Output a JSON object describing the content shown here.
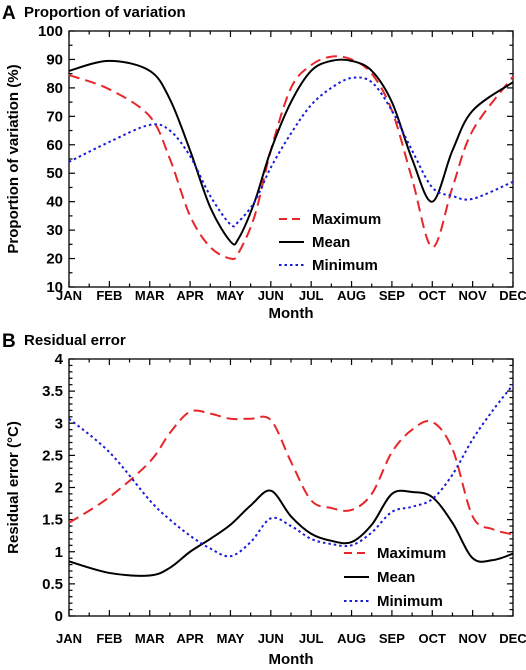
{
  "chart_data": [
    {
      "type": "line",
      "panel": "A",
      "title": "Proportion of variation",
      "xlabel": "Month",
      "ylabel": "Proportion of variation (%)",
      "categories": [
        "JAN",
        "FEB",
        "MAR",
        "APR",
        "MAY",
        "JUN",
        "JUL",
        "AUG",
        "SEP",
        "OCT",
        "NOV",
        "DEC"
      ],
      "ylim": [
        10,
        100
      ],
      "yticks": [
        "10",
        "20",
        "30",
        "40",
        "50",
        "60",
        "70",
        "80",
        "90",
        "100"
      ],
      "legend_position": "lower-center",
      "grid": false,
      "series": [
        {
          "name": "Maximum",
          "color": "#e8262a",
          "dash": "dashed",
          "points": [
            [
              0,
              84.5
            ],
            [
              1,
              79.5
            ],
            [
              2,
              70
            ],
            [
              2.5,
              55
            ],
            [
              3,
              35
            ],
            [
              3.5,
              24
            ],
            [
              4,
              20
            ],
            [
              4.2,
              22
            ],
            [
              4.6,
              35
            ],
            [
              5,
              58
            ],
            [
              5.5,
              80
            ],
            [
              6,
              88
            ],
            [
              6.5,
              91
            ],
            [
              7,
              90
            ],
            [
              7.5,
              85
            ],
            [
              8,
              72
            ],
            [
              8.5,
              48
            ],
            [
              9,
              24
            ],
            [
              9.5,
              45
            ],
            [
              10,
              65
            ],
            [
              11,
              84
            ]
          ]
        },
        {
          "name": "Mean",
          "color": "#000000",
          "dash": "solid",
          "points": [
            [
              0,
              86
            ],
            [
              1,
              89.5
            ],
            [
              2,
              86
            ],
            [
              2.5,
              76
            ],
            [
              3,
              58
            ],
            [
              3.5,
              38
            ],
            [
              4,
              26
            ],
            [
              4.2,
              27
            ],
            [
              4.6,
              40
            ],
            [
              5,
              58
            ],
            [
              5.5,
              75
            ],
            [
              6,
              86
            ],
            [
              6.5,
              89.5
            ],
            [
              7,
              89.5
            ],
            [
              7.5,
              86
            ],
            [
              8,
              75
            ],
            [
              8.5,
              55
            ],
            [
              9,
              40
            ],
            [
              9.5,
              58
            ],
            [
              10,
              72
            ],
            [
              11,
              82
            ]
          ]
        },
        {
          "name": "Minimum",
          "color": "#1a1adb",
          "dash": "dotted",
          "points": [
            [
              0,
              54
            ],
            [
              1,
              61
            ],
            [
              2,
              67
            ],
            [
              2.5,
              65
            ],
            [
              3,
              56
            ],
            [
              3.5,
              42
            ],
            [
              4,
              32
            ],
            [
              4.2,
              33
            ],
            [
              4.6,
              40
            ],
            [
              5,
              52
            ],
            [
              5.5,
              64
            ],
            [
              6,
              74
            ],
            [
              6.5,
              80
            ],
            [
              7,
              83.5
            ],
            [
              7.5,
              82
            ],
            [
              8,
              72
            ],
            [
              8.5,
              58
            ],
            [
              9,
              45
            ],
            [
              9.5,
              42
            ],
            [
              10,
              41
            ],
            [
              11,
              47
            ]
          ]
        }
      ]
    },
    {
      "type": "line",
      "panel": "B",
      "title": "Residual error",
      "xlabel": "Month",
      "ylabel": "Residual error (°C)",
      "categories": [
        "JAN",
        "FEB",
        "MAR",
        "APR",
        "MAY",
        "JUN",
        "JUL",
        "AUG",
        "SEP",
        "OCT",
        "NOV",
        "DEC"
      ],
      "ylim": [
        0,
        4
      ],
      "yticks": [
        "0",
        "0.5",
        "1",
        "1.5",
        "2",
        "2.5",
        "3",
        "3.5",
        "4"
      ],
      "legend_position": "lower-right",
      "grid": false,
      "series": [
        {
          "name": "Maximum",
          "color": "#e8262a",
          "dash": "dashed",
          "points": [
            [
              0,
              1.45
            ],
            [
              1,
              1.85
            ],
            [
              2,
              2.4
            ],
            [
              2.5,
              2.85
            ],
            [
              3,
              3.18
            ],
            [
              3.5,
              3.15
            ],
            [
              4,
              3.07
            ],
            [
              4.5,
              3.07
            ],
            [
              5,
              3.05
            ],
            [
              5.5,
              2.4
            ],
            [
              6,
              1.8
            ],
            [
              6.5,
              1.68
            ],
            [
              7,
              1.65
            ],
            [
              7.5,
              1.9
            ],
            [
              8,
              2.55
            ],
            [
              8.5,
              2.9
            ],
            [
              9,
              3.02
            ],
            [
              9.5,
              2.6
            ],
            [
              10,
              1.55
            ],
            [
              10.5,
              1.35
            ],
            [
              11,
              1.27
            ]
          ]
        },
        {
          "name": "Mean",
          "color": "#000000",
          "dash": "solid",
          "points": [
            [
              0,
              0.85
            ],
            [
              1,
              0.67
            ],
            [
              2,
              0.63
            ],
            [
              2.5,
              0.75
            ],
            [
              3,
              1.0
            ],
            [
              3.5,
              1.2
            ],
            [
              4,
              1.42
            ],
            [
              4.5,
              1.72
            ],
            [
              5,
              1.95
            ],
            [
              5.5,
              1.55
            ],
            [
              6,
              1.28
            ],
            [
              6.5,
              1.17
            ],
            [
              7,
              1.15
            ],
            [
              7.5,
              1.42
            ],
            [
              8,
              1.9
            ],
            [
              8.5,
              1.93
            ],
            [
              9,
              1.85
            ],
            [
              9.5,
              1.45
            ],
            [
              10,
              0.9
            ],
            [
              10.5,
              0.87
            ],
            [
              11,
              0.97
            ]
          ]
        },
        {
          "name": "Minimum",
          "color": "#1a1adb",
          "dash": "dotted",
          "points": [
            [
              0,
              3.07
            ],
            [
              1,
              2.55
            ],
            [
              2,
              1.8
            ],
            [
              2.5,
              1.5
            ],
            [
              3,
              1.25
            ],
            [
              3.5,
              1.05
            ],
            [
              4,
              0.93
            ],
            [
              4.5,
              1.15
            ],
            [
              5,
              1.52
            ],
            [
              5.5,
              1.4
            ],
            [
              6,
              1.2
            ],
            [
              6.5,
              1.12
            ],
            [
              7,
              1.1
            ],
            [
              7.5,
              1.3
            ],
            [
              8,
              1.62
            ],
            [
              8.5,
              1.7
            ],
            [
              9,
              1.82
            ],
            [
              9.5,
              2.2
            ],
            [
              10,
              2.75
            ],
            [
              10.5,
              3.2
            ],
            [
              11,
              3.6
            ]
          ]
        }
      ]
    }
  ]
}
